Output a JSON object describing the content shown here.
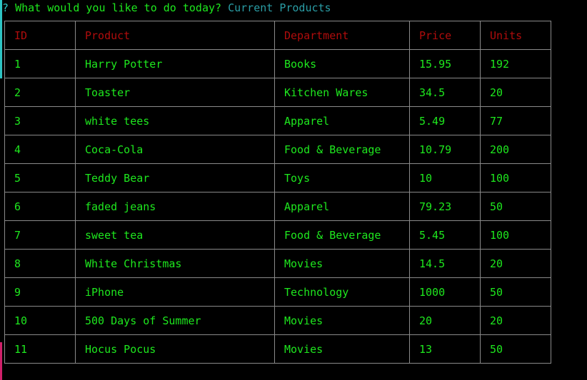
{
  "prompt": {
    "mark": "?",
    "question": "What would you like to do today?",
    "answer": "Current Products"
  },
  "colors": {
    "question_text": "#1ee81e",
    "answer_text": "#2a9da5",
    "header_text": "#b00c0c",
    "cell_text": "#1ee81e",
    "border": "#8a8a8a",
    "background": "#000000",
    "edge_top": "#2ec4c4",
    "edge_bottom": "#d0206a"
  },
  "table": {
    "headers": [
      "ID",
      "Product",
      "Department",
      "Price",
      "Units"
    ],
    "rows": [
      [
        "1",
        "Harry Potter",
        "Books",
        "15.95",
        "192"
      ],
      [
        "2",
        "Toaster",
        "Kitchen Wares",
        "34.5",
        "20"
      ],
      [
        "3",
        "white tees",
        "Apparel",
        "5.49",
        "77"
      ],
      [
        "4",
        "Coca-Cola",
        "Food & Beverage",
        "10.79",
        "200"
      ],
      [
        "5",
        "Teddy Bear",
        "Toys",
        "10",
        "100"
      ],
      [
        "6",
        "faded jeans",
        "Apparel",
        "79.23",
        "50"
      ],
      [
        "7",
        "sweet tea",
        "Food & Beverage",
        "5.45",
        "100"
      ],
      [
        "8",
        "White Christmas",
        "Movies",
        "14.5",
        "20"
      ],
      [
        "9",
        "iPhone",
        "Technology",
        "1000",
        "50"
      ],
      [
        "10",
        "500 Days of Summer",
        "Movies",
        "20",
        "20"
      ],
      [
        "11",
        "Hocus Pocus",
        "Movies",
        "13",
        "50"
      ]
    ]
  }
}
